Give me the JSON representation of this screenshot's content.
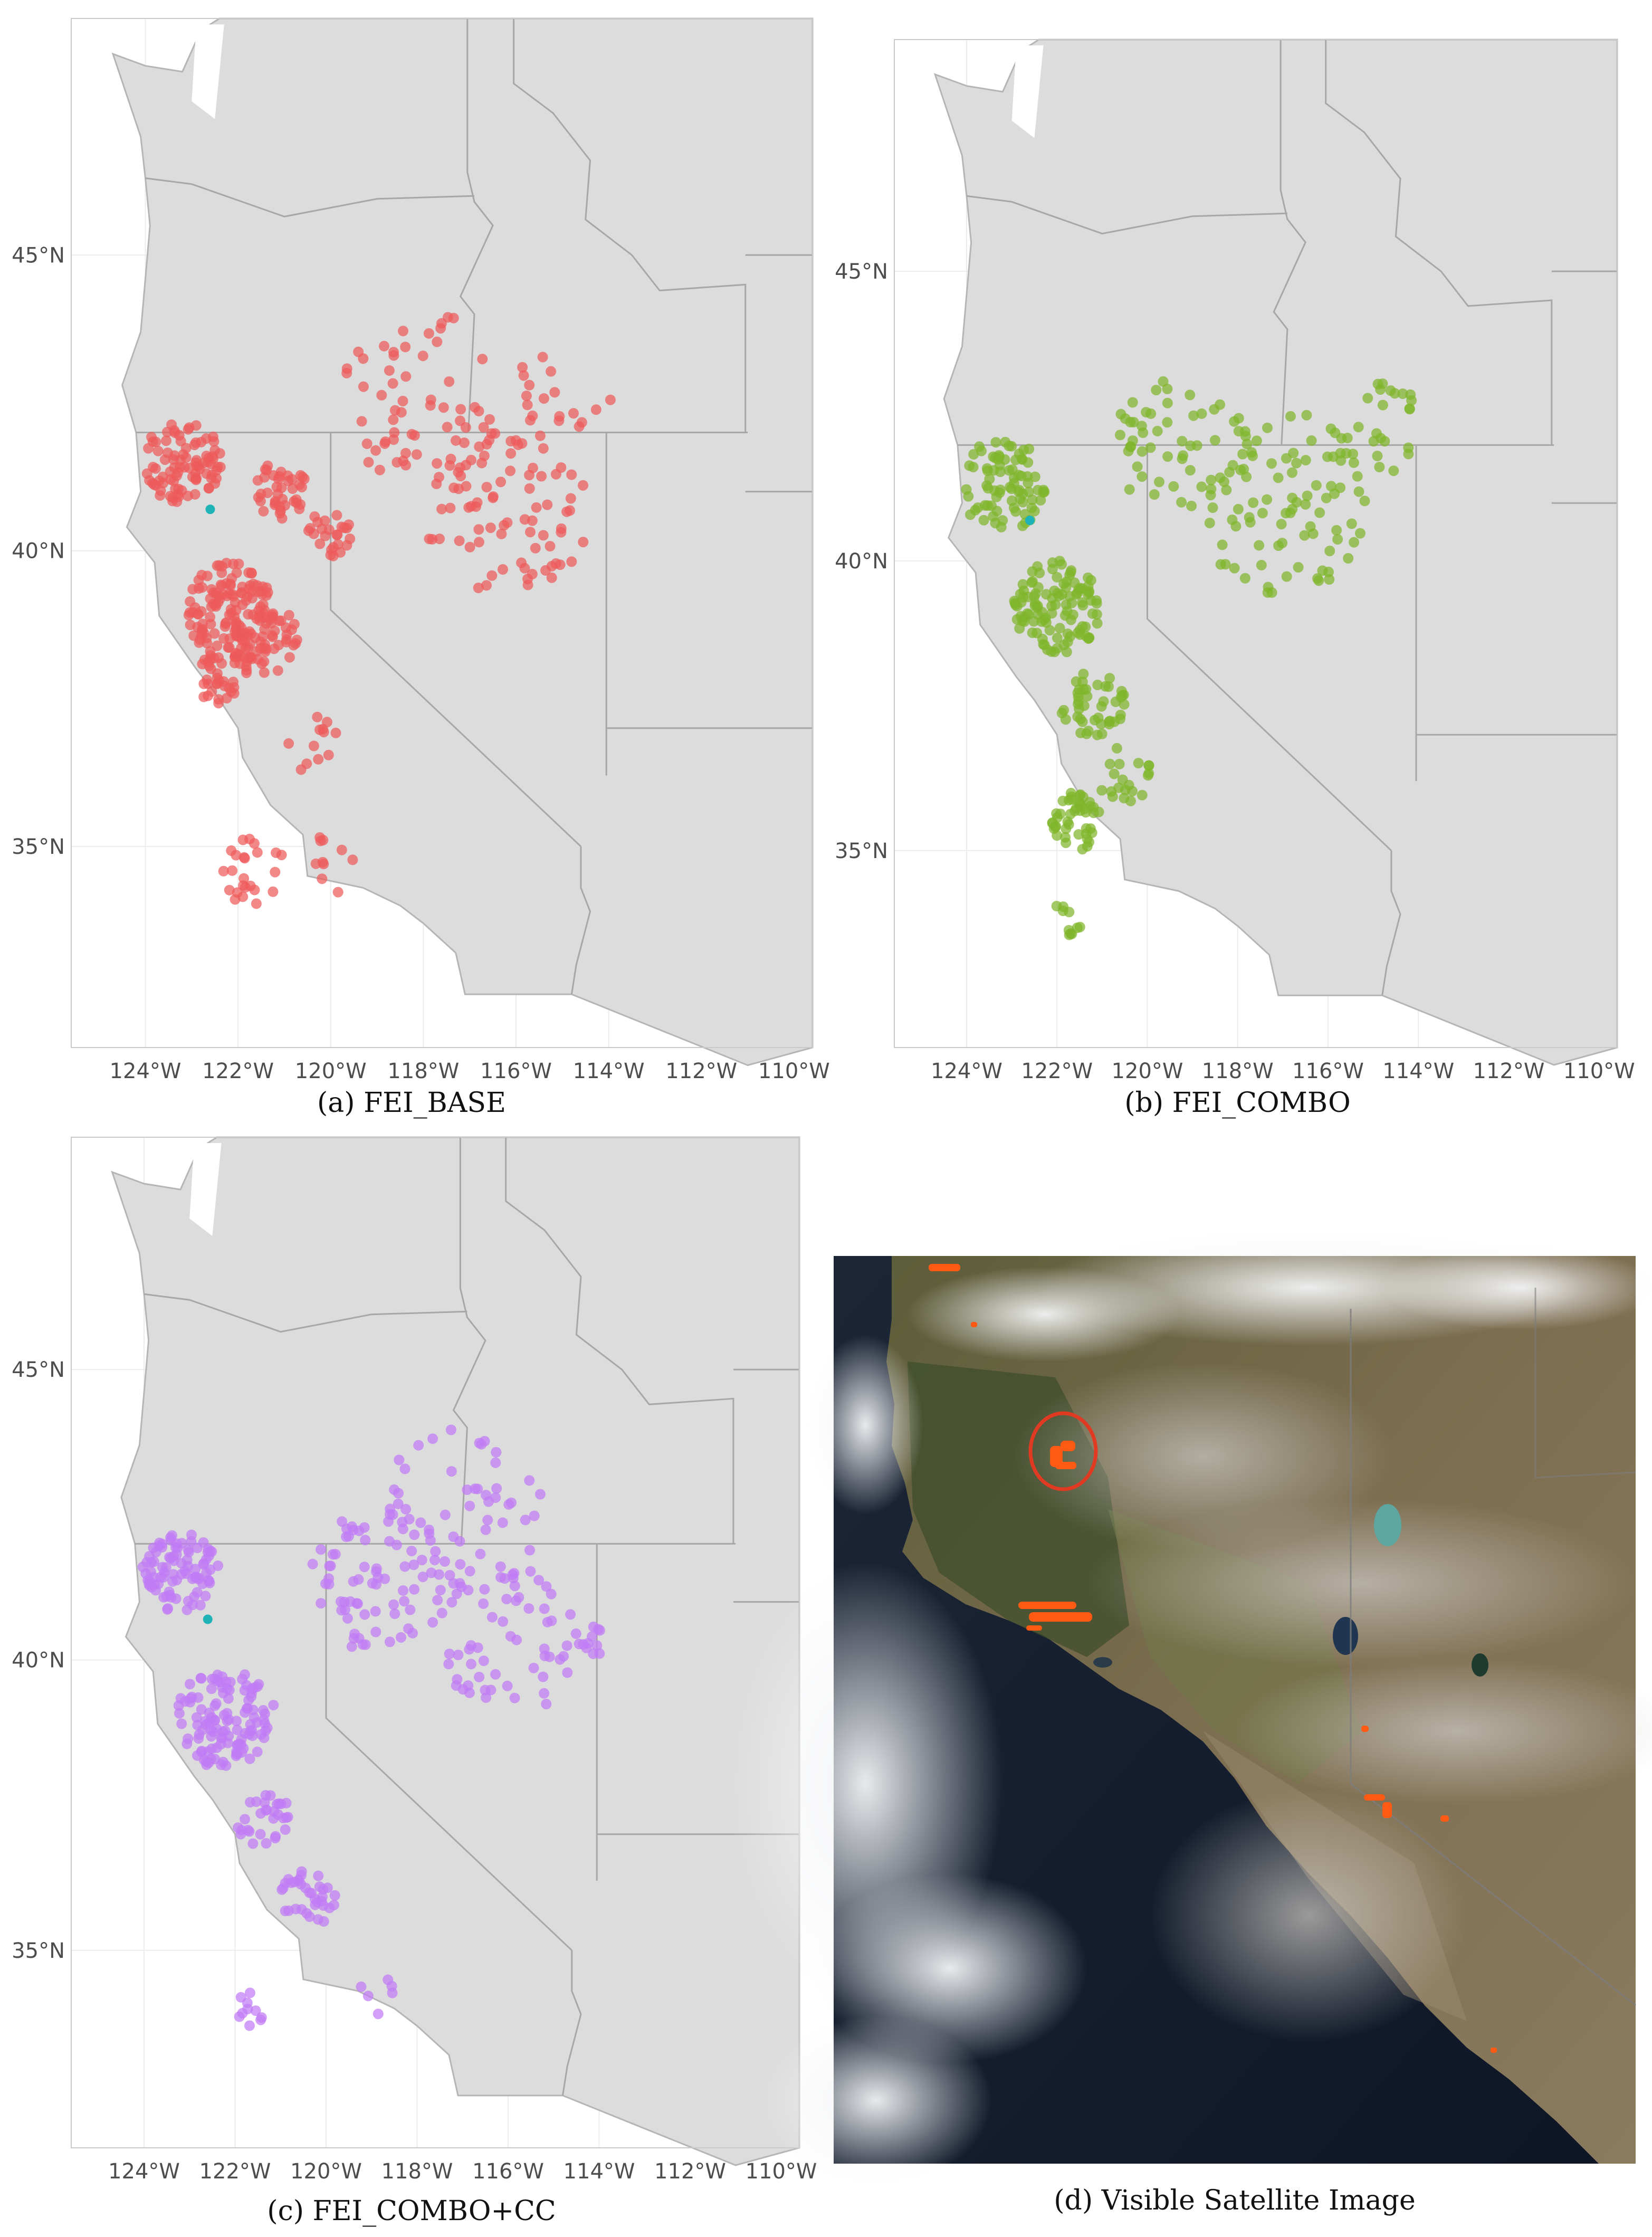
{
  "panels": [
    {
      "id": "a",
      "caption": "(a) FEI_BASE",
      "point_color": "#ee5a5a",
      "marker_color": "#1fb3b8",
      "marker": {
        "lon": -122.6,
        "lat": 40.7
      },
      "x_ticks": [
        "124°W",
        "122°W",
        "120°W",
        "118°W",
        "116°W",
        "114°W",
        "112°W",
        "110°W"
      ],
      "y_ticks": [
        "35°N",
        "40°N",
        "45°N"
      ],
      "x_range": [
        -125.6,
        -109.6
      ],
      "y_range": [
        31.6,
        49.0
      ]
    },
    {
      "id": "b",
      "caption": "(b) FEI_COMBO",
      "point_color": "#7fb52b",
      "marker_color": "#1fb3b8",
      "marker": {
        "lon": -122.6,
        "lat": 40.7
      },
      "x_ticks": [
        "124°W",
        "122°W",
        "120°W",
        "118°W",
        "116°W",
        "114°W",
        "112°W",
        "110°W"
      ],
      "y_ticks": [
        "35°N",
        "40°N",
        "45°N"
      ],
      "x_range": [
        -125.6,
        -109.6
      ],
      "y_range": [
        31.6,
        49.0
      ]
    },
    {
      "id": "c",
      "caption": "(c) FEI_COMBO+CC",
      "point_color": "#c07bf5",
      "marker_color": "#1fb3b8",
      "marker": {
        "lon": -122.6,
        "lat": 40.7
      },
      "x_ticks": [
        "124°W",
        "122°W",
        "120°W",
        "118°W",
        "116°W",
        "114°W",
        "112°W",
        "110°W"
      ],
      "y_ticks": [
        "35°N",
        "40°N",
        "45°N"
      ],
      "x_range": [
        -125.6,
        -109.6
      ],
      "y_range": [
        31.6,
        49.0
      ]
    }
  ],
  "satellite": {
    "caption": "(d) Visible Satellite Image",
    "fire_color": "#ff5a14",
    "circle_color": "#e03a22"
  }
}
